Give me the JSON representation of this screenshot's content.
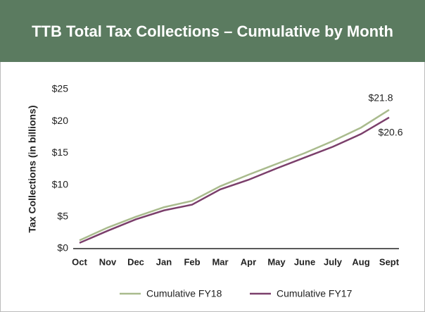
{
  "chart_data": {
    "type": "line",
    "title": "TTB Total Tax Collections – Cumulative by Month",
    "y_label": "Tax Collections (in billions)",
    "categories": [
      "Oct",
      "Nov",
      "Dec",
      "Jan",
      "Feb",
      "Mar",
      "Apr",
      "May",
      "June",
      "July",
      "Aug",
      "Sept"
    ],
    "series": [
      {
        "name": "Cumulative FY18",
        "color": "#a9bb8d",
        "values": [
          1.3,
          3.3,
          5.0,
          6.5,
          7.5,
          9.8,
          11.6,
          13.3,
          15.0,
          16.9,
          19.0,
          21.8
        ],
        "value_labels": [
          null,
          null,
          null,
          null,
          null,
          null,
          null,
          null,
          null,
          null,
          null,
          "$21.8"
        ]
      },
      {
        "name": "Cumulative FY17",
        "color": "#7b3f6b",
        "values": [
          0.9,
          2.8,
          4.6,
          6.0,
          6.9,
          9.3,
          10.8,
          12.6,
          14.3,
          16.0,
          18.0,
          20.6
        ],
        "value_labels": [
          null,
          null,
          null,
          null,
          null,
          null,
          null,
          null,
          null,
          null,
          null,
          "$20.6"
        ]
      }
    ],
    "ylim": [
      0,
      25
    ],
    "yticks": [
      {
        "value": 0,
        "label": "$0"
      },
      {
        "value": 5,
        "label": "$5"
      },
      {
        "value": 10,
        "label": "$10"
      },
      {
        "value": 15,
        "label": "$15"
      },
      {
        "value": 20,
        "label": "$20"
      },
      {
        "value": 25,
        "label": "$25"
      }
    ],
    "grid": false
  }
}
